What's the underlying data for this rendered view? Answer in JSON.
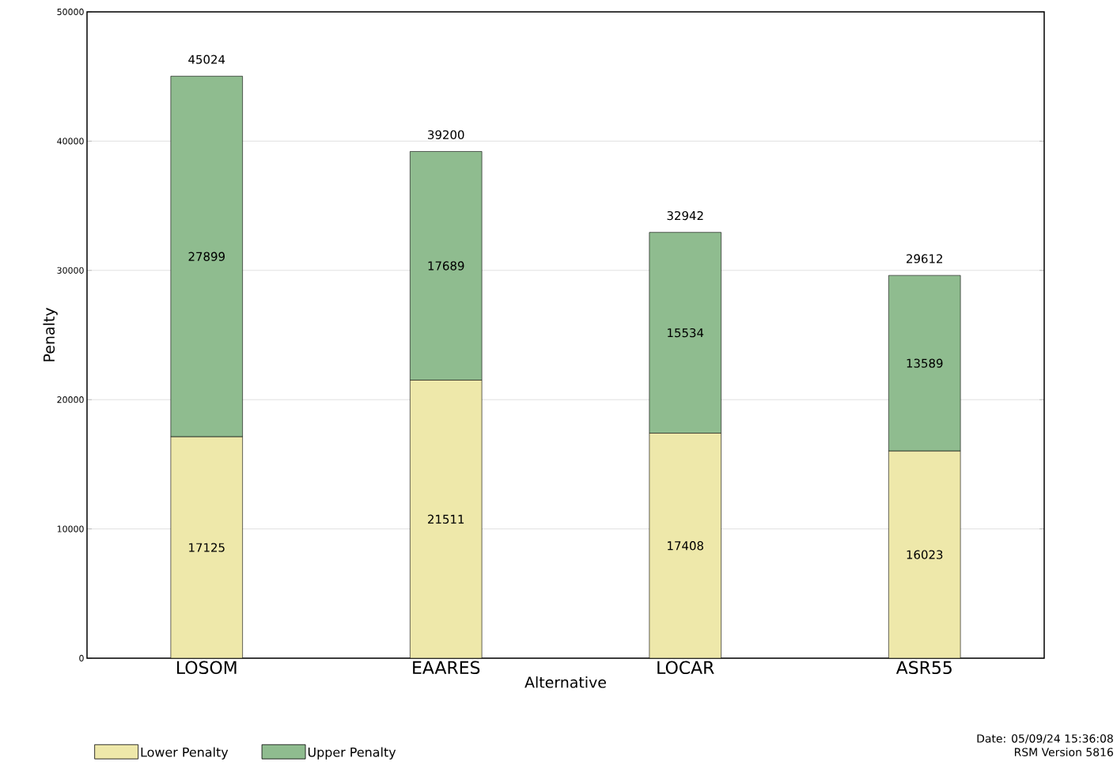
{
  "chart_data": {
    "type": "bar",
    "stacked": true,
    "xlabel": "Alternative",
    "ylabel": "Penalty",
    "categories": [
      "LOSOM",
      "EAARES",
      "LOCAR",
      "ASR55"
    ],
    "series": [
      {
        "name": "Lower Penalty",
        "color": "#eee8aa",
        "values": [
          17125,
          21511,
          17408,
          16023
        ]
      },
      {
        "name": "Upper Penalty",
        "color": "#8fbc8f",
        "values": [
          27899,
          17689,
          15534,
          13589
        ]
      }
    ],
    "data_labels": true,
    "totals": [
      "45024",
      "39200",
      "32942",
      "29612"
    ],
    "ylim": [
      0,
      50000
    ],
    "yticks": [
      0,
      10000,
      20000,
      30000,
      40000,
      50000
    ],
    "grid": "y",
    "legend": "bottom",
    "annotations": [
      "Date: 05/09/24 15:36:08",
      "RSM Version 5816"
    ]
  }
}
